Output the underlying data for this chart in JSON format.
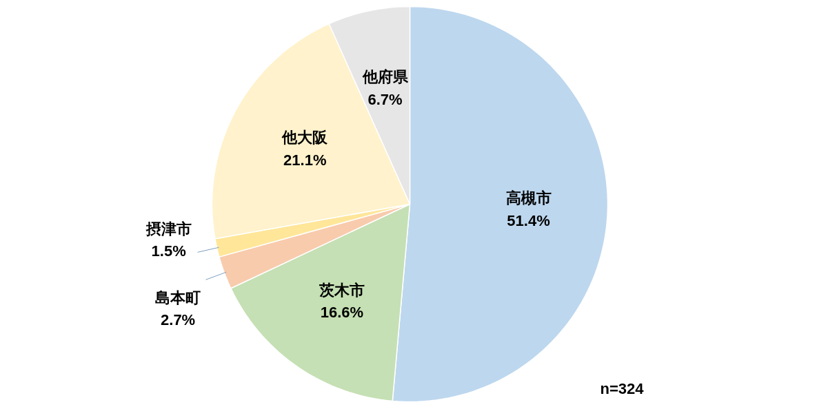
{
  "chart_data": {
    "type": "pie",
    "categories": [
      "高槻市",
      "茨木市",
      "島本町",
      "摂津市",
      "他大阪",
      "他府県"
    ],
    "values": [
      51.4,
      16.6,
      2.7,
      1.5,
      21.1,
      6.7
    ],
    "colors": [
      "#bdd7ee",
      "#c5e0b4",
      "#f8cbad",
      "#ffe699",
      "#fff2cc",
      "#e7e6e6"
    ],
    "value_labels": [
      "51.4%",
      "16.6%",
      "2.7%",
      "1.5%",
      "21.1%",
      "6.7%"
    ],
    "annotations": [
      "n=324"
    ]
  }
}
